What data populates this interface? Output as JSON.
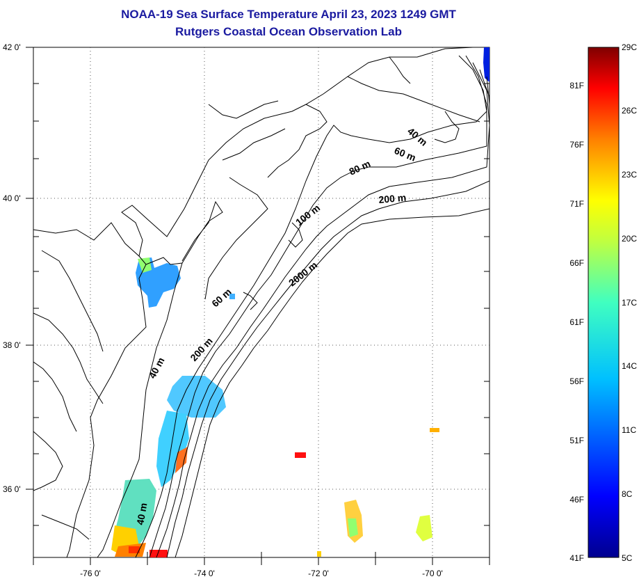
{
  "title": "NOAA-19 Sea Surface Temperature April 23, 2023 1249 GMT",
  "subtitle": "Rutgers Coastal Ocean Observation Lab",
  "map": {
    "lat_ticks": [
      "42 0'",
      "40 0'",
      "38 0'",
      "36 0'"
    ],
    "lon_ticks": [
      "-76 0'",
      "-74 0'",
      "-72 0'",
      "-70 0'"
    ],
    "lat_range": [
      35,
      42
    ],
    "lon_range": [
      -77,
      -69
    ]
  },
  "contours": [
    "40 m",
    "60 m",
    "80 m",
    "200 m",
    "100 m",
    "2000 m",
    "60 m",
    "200 m",
    "40 m",
    "40 m"
  ],
  "colorbar": {
    "fahrenheit": [
      "81F",
      "76F",
      "71F",
      "66F",
      "61F",
      "56F",
      "51F",
      "46F",
      "41F"
    ],
    "celsius": [
      "29C",
      "26C",
      "23C",
      "20C",
      "17C",
      "14C",
      "11C",
      "8C",
      "5C"
    ],
    "colors": [
      "#7f0000",
      "#ff0000",
      "#ff8000",
      "#ffff00",
      "#80ff80",
      "#00ffff",
      "#0080ff",
      "#0000ff",
      "#00008f"
    ]
  }
}
